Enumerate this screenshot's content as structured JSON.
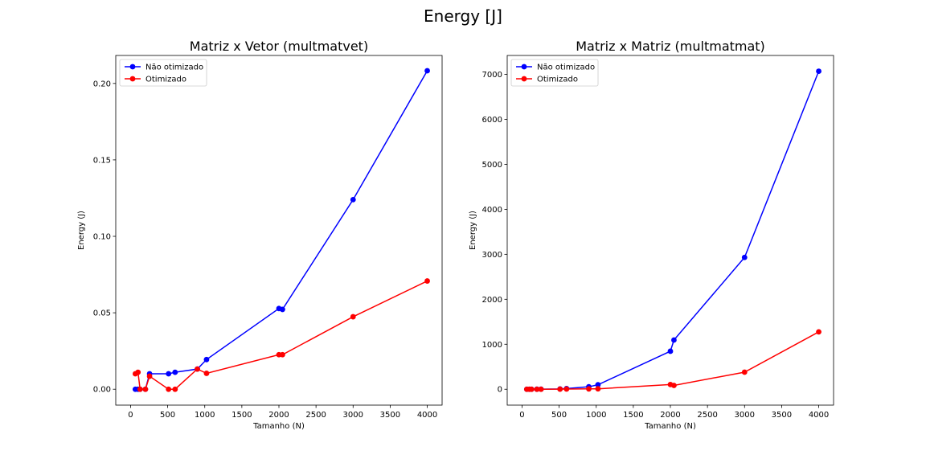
{
  "figure": {
    "suptitle": "Energy [J]"
  },
  "chart_data": [
    {
      "type": "line",
      "title": "Matriz x Vetor (multmatvet)",
      "xlabel": "Tamanho (N)",
      "ylabel": "Energy (J)",
      "xlim": [
        -200,
        4200
      ],
      "ylim": [
        -0.0104,
        0.2183
      ],
      "xticks": [
        0,
        500,
        1000,
        1500,
        2000,
        2500,
        3000,
        3500,
        4000
      ],
      "xtick_labels": [
        "0",
        "500",
        "1000",
        "1500",
        "2000",
        "2500",
        "3000",
        "3500",
        "4000"
      ],
      "yticks": [
        0,
        0.05,
        0.1,
        0.15,
        0.2
      ],
      "ytick_labels": [
        "0.00",
        "0.05",
        "0.10",
        "0.15",
        "0.20"
      ],
      "legend_loc": "upper-left",
      "grid": false,
      "series": [
        {
          "name": "Não otimizado",
          "color": "#0000ff",
          "x": [
            64,
            100,
            128,
            200,
            256,
            512,
            600,
            900,
            1024,
            2000,
            2048,
            3000,
            4000
          ],
          "y": [
            0.0,
            0.0,
            0.0,
            0.0,
            0.0101,
            0.0101,
            0.0111,
            0.0132,
            0.0194,
            0.0528,
            0.0522,
            0.124,
            0.2083
          ]
        },
        {
          "name": "Otimizado",
          "color": "#ff0000",
          "x": [
            64,
            100,
            128,
            200,
            256,
            512,
            600,
            900,
            1024,
            2000,
            2048,
            3000,
            4000
          ],
          "y": [
            0.0101,
            0.0111,
            0.0,
            0.0,
            0.0085,
            0.0,
            0.0,
            0.0132,
            0.0104,
            0.0226,
            0.0226,
            0.0474,
            0.0708
          ]
        }
      ]
    },
    {
      "type": "line",
      "title": "Matriz x Matriz (multmatmat)",
      "xlabel": "Tamanho (N)",
      "ylabel": "Energy (J)",
      "xlim": [
        -200,
        4200
      ],
      "ylim": [
        -353,
        7420
      ],
      "xticks": [
        0,
        500,
        1000,
        1500,
        2000,
        2500,
        3000,
        3500,
        4000
      ],
      "xtick_labels": [
        "0",
        "500",
        "1000",
        "1500",
        "2000",
        "2500",
        "3000",
        "3500",
        "4000"
      ],
      "yticks": [
        0,
        1000,
        2000,
        3000,
        4000,
        5000,
        6000,
        7000
      ],
      "ytick_labels": [
        "0",
        "1000",
        "2000",
        "3000",
        "4000",
        "5000",
        "6000",
        "7000"
      ],
      "legend_loc": "upper-left",
      "grid": false,
      "series": [
        {
          "name": "Não otimizado",
          "color": "#0000ff",
          "x": [
            64,
            100,
            128,
            200,
            256,
            512,
            600,
            900,
            1024,
            2000,
            2048,
            3000,
            4000
          ],
          "y": [
            0,
            0,
            0,
            1,
            2,
            7,
            15,
            55,
            100,
            845,
            1095,
            2930,
            7070
          ]
        },
        {
          "name": "Otimizado",
          "color": "#ff0000",
          "x": [
            64,
            100,
            128,
            200,
            256,
            512,
            600,
            900,
            1024,
            2000,
            2048,
            3000,
            4000
          ],
          "y": [
            0,
            0,
            0,
            0,
            0,
            2,
            4,
            8,
            10,
            105,
            85,
            380,
            1275
          ]
        }
      ]
    }
  ]
}
